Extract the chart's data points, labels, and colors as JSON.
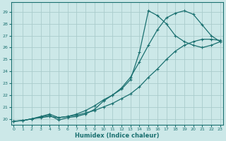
{
  "xlabel": "Humidex (Indice chaleur)",
  "bg_color": "#cce8e8",
  "grid_color": "#aacccc",
  "line_color": "#1a7070",
  "xlim": [
    -0.3,
    23.3
  ],
  "ylim": [
    19.5,
    29.8
  ],
  "yticks": [
    20,
    21,
    22,
    23,
    24,
    25,
    26,
    27,
    28,
    29
  ],
  "xticks": [
    0,
    1,
    2,
    3,
    4,
    5,
    6,
    7,
    8,
    9,
    10,
    11,
    12,
    13,
    14,
    15,
    16,
    17,
    18,
    19,
    20,
    21,
    22,
    23
  ],
  "curve_a_x": [
    0,
    1,
    2,
    3,
    4,
    5,
    6,
    7,
    8,
    9,
    10,
    11,
    12,
    13,
    14,
    15,
    16,
    17,
    18,
    19,
    20,
    21,
    22,
    23
  ],
  "curve_a_y": [
    19.8,
    19.85,
    20.0,
    20.1,
    20.2,
    20.1,
    20.2,
    20.3,
    20.5,
    20.7,
    21.0,
    21.3,
    21.7,
    22.1,
    22.7,
    23.5,
    24.2,
    25.0,
    25.7,
    26.2,
    26.5,
    26.7,
    26.7,
    26.6
  ],
  "curve_b_x": [
    0,
    1,
    2,
    3,
    4,
    5,
    6,
    7,
    8,
    9,
    10,
    11,
    12,
    13,
    14,
    15,
    16,
    17,
    18,
    19,
    20,
    21,
    22,
    23
  ],
  "curve_b_y": [
    19.8,
    19.85,
    20.0,
    20.15,
    20.3,
    19.9,
    20.1,
    20.2,
    20.4,
    20.8,
    21.5,
    22.0,
    22.5,
    23.3,
    25.6,
    29.1,
    28.7,
    28.0,
    27.0,
    26.5,
    26.2,
    26.0,
    26.2,
    26.5
  ],
  "curve_c_x": [
    0,
    1,
    2,
    3,
    4,
    5,
    6,
    7,
    8,
    9,
    10,
    11,
    12,
    13,
    14,
    15,
    16,
    17,
    18,
    19,
    20,
    21,
    22,
    23
  ],
  "curve_c_y": [
    19.8,
    19.85,
    20.0,
    20.2,
    20.4,
    20.1,
    20.2,
    20.4,
    20.7,
    21.1,
    21.6,
    22.0,
    22.6,
    23.5,
    24.8,
    26.2,
    27.5,
    28.5,
    28.9,
    29.1,
    28.8,
    27.9,
    27.0,
    26.5
  ]
}
